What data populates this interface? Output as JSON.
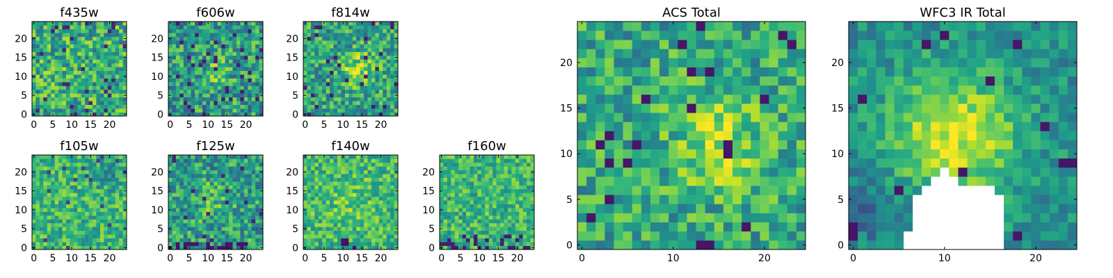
{
  "figure": {
    "description_free": true
  },
  "chart_data": [
    {
      "type": "heatmap",
      "title": "f435w",
      "colormap": "viridis",
      "grid_size": 25,
      "xlim": [
        0,
        24
      ],
      "ylim": [
        0,
        24
      ],
      "xticks": [
        0,
        5,
        10,
        15,
        20
      ],
      "yticks": [
        0,
        5,
        10,
        15,
        20
      ],
      "seed": 11,
      "pattern": "uniform noise, mostly green-yellow with scattered dark blue pixels"
    },
    {
      "type": "heatmap",
      "title": "f606w",
      "colormap": "viridis",
      "grid_size": 25,
      "xlim": [
        0,
        24
      ],
      "ylim": [
        0,
        24
      ],
      "xticks": [
        0,
        5,
        10,
        15,
        20
      ],
      "yticks": [
        0,
        5,
        10,
        15,
        20
      ],
      "seed": 23,
      "pattern": "noise with faint brighter patch near center"
    },
    {
      "type": "heatmap",
      "title": "f814w",
      "colormap": "viridis",
      "grid_size": 25,
      "xlim": [
        0,
        24
      ],
      "ylim": [
        0,
        24
      ],
      "xticks": [
        0,
        5,
        10,
        15,
        20
      ],
      "yticks": [
        0,
        5,
        10,
        15,
        20
      ],
      "seed": 37,
      "pattern": "noise with brighter yellow patch near center"
    },
    {
      "type": "heatmap",
      "title": "f105w",
      "colormap": "viridis",
      "grid_size": 25,
      "xlim": [
        0,
        24
      ],
      "ylim": [
        0,
        24
      ],
      "xticks": [
        0,
        5,
        10,
        15,
        20
      ],
      "yticks": [
        0,
        5,
        10,
        15,
        20
      ],
      "seed": 41,
      "pattern": "smooth yellow-green field with darker teal blobs"
    },
    {
      "type": "heatmap",
      "title": "f125w",
      "colormap": "viridis",
      "grid_size": 25,
      "xlim": [
        0,
        24
      ],
      "ylim": [
        0,
        24
      ],
      "xticks": [
        0,
        5,
        10,
        15,
        20
      ],
      "yticks": [
        0,
        5,
        10,
        15,
        20
      ],
      "seed": 53,
      "pattern": "mottled green with dark purple pixels near bottom"
    },
    {
      "type": "heatmap",
      "title": "f140w",
      "colormap": "viridis",
      "grid_size": 25,
      "xlim": [
        0,
        24
      ],
      "ylim": [
        0,
        24
      ],
      "xticks": [
        0,
        5,
        10,
        15,
        20
      ],
      "yticks": [
        0,
        5,
        10,
        15,
        20
      ],
      "seed": 67,
      "pattern": "yellow-green field with dark pixels near bottom center"
    },
    {
      "type": "heatmap",
      "title": "f160w",
      "colormap": "viridis",
      "grid_size": 25,
      "xlim": [
        0,
        24
      ],
      "ylim": [
        0,
        24
      ],
      "xticks": [
        0,
        5,
        10,
        15,
        20
      ],
      "yticks": [
        0,
        5,
        10,
        15,
        20
      ],
      "seed": 79,
      "pattern": "yellow-green field with dark pixels along bottom"
    },
    {
      "type": "heatmap",
      "title": "ACS Total",
      "colormap": "viridis",
      "grid_size": 25,
      "xlim": [
        0,
        24
      ],
      "ylim": [
        0,
        24
      ],
      "xticks": [
        0,
        10,
        20
      ],
      "yticks": [
        0,
        5,
        10,
        15,
        20
      ],
      "seed": 97,
      "pattern": "noise with brighter yellow region right of center around x=15 y=11"
    },
    {
      "type": "heatmap",
      "title": "WFC3 IR Total",
      "colormap": "viridis",
      "grid_size": 25,
      "xlim": [
        0,
        24
      ],
      "ylim": [
        0,
        24
      ],
      "xticks": [
        0,
        10,
        20
      ],
      "yticks": [
        0,
        5,
        10,
        15,
        20
      ],
      "seed": 101,
      "pattern": "bright yellow core around x=11 y=12, masked white (no data) region at bottom center"
    }
  ]
}
